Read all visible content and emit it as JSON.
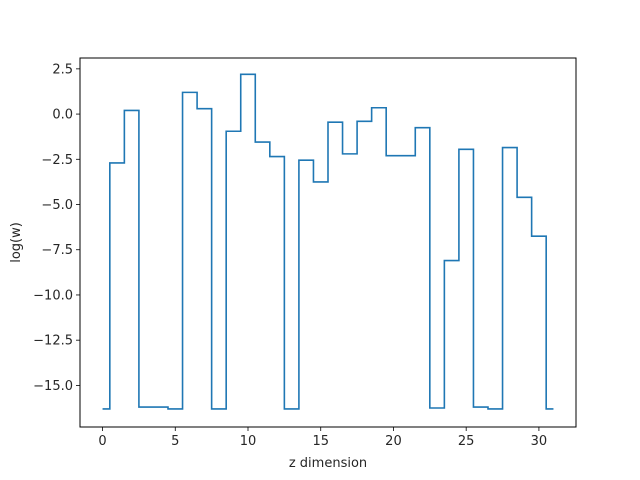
{
  "chart_data": {
    "type": "line",
    "drawstyle": "steps-mid",
    "xlabel": "z dimension",
    "ylabel": "log(w)",
    "xlim": [
      -1.55,
      32.55
    ],
    "ylim": [
      -17.3,
      3.1
    ],
    "xticks": [
      0,
      5,
      10,
      15,
      20,
      25,
      30
    ],
    "yticks": [
      2.5,
      0.0,
      -2.5,
      -5.0,
      -7.5,
      -10.0,
      -12.5,
      -15.0
    ],
    "xtick_labels": [
      "0",
      "5",
      "10",
      "15",
      "20",
      "25",
      "30"
    ],
    "ytick_labels": [
      "2.5",
      "0.0",
      "−2.5",
      "−5.0",
      "−7.5",
      "−10.0",
      "−12.5",
      "−15.0"
    ],
    "grid": false,
    "series": [
      {
        "color": "#1f77b4",
        "x": [
          0,
          1,
          2,
          3,
          4,
          5,
          6,
          7,
          8,
          9,
          10,
          11,
          12,
          13,
          14,
          15,
          16,
          17,
          18,
          19,
          20,
          21,
          22,
          23,
          24,
          25,
          26,
          27,
          28,
          29,
          30,
          31
        ],
        "y": [
          -16.3,
          -2.7,
          0.2,
          -16.2,
          -16.2,
          -16.3,
          1.2,
          0.3,
          -16.3,
          -0.95,
          2.2,
          -1.55,
          -2.35,
          -16.3,
          -2.55,
          -3.75,
          -0.45,
          -2.2,
          -0.4,
          0.35,
          -2.3,
          -2.3,
          -0.75,
          -16.25,
          -8.1,
          -1.95,
          -16.2,
          -16.3,
          -1.85,
          -4.6,
          -6.75,
          -16.3
        ]
      }
    ]
  }
}
